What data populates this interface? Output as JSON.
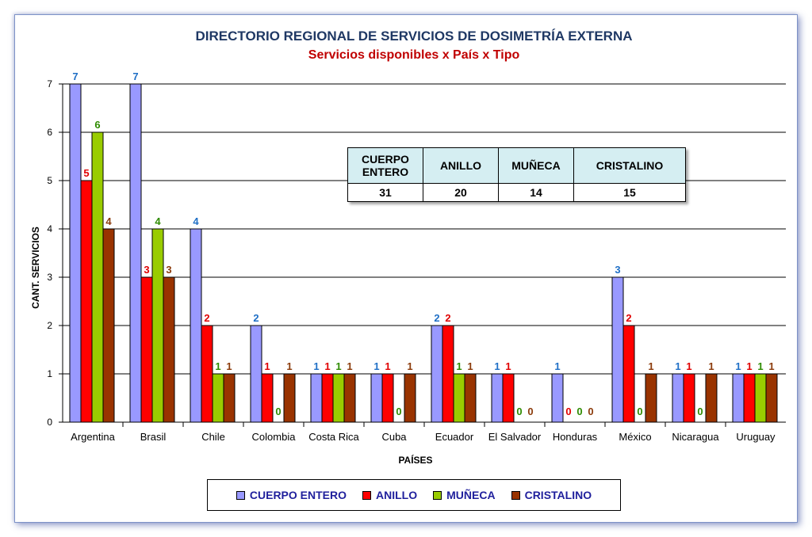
{
  "colors": {
    "cuerpo": "#9999ff",
    "anillo": "#ff0000",
    "muneca": "#99cc00",
    "cristalino": "#993300",
    "label_cuerpo": "#1f6fc6",
    "label_anillo": "#e00000",
    "label_muneca": "#2e8b00",
    "label_cristalino": "#8b3a0a",
    "title": "#1f3864",
    "subtitle": "#c00000"
  },
  "totals": {
    "headers": [
      "CUERPO ENTERO",
      "ANILLO",
      "MUÑECA",
      "CRISTALINO"
    ],
    "values": [
      "31",
      "20",
      "14",
      "15"
    ]
  },
  "chart_data": {
    "type": "bar",
    "title": "DIRECTORIO REGIONAL DE SERVICIOS DE DOSIMETRÍA EXTERNA",
    "subtitle": "Servicios disponibles x País x Tipo",
    "xlabel": "PAÍSES",
    "ylabel": "CANT. SERVICIOS",
    "ylim": [
      0,
      7
    ],
    "yticks": [
      "0",
      "1",
      "2",
      "3",
      "4",
      "5",
      "6",
      "7"
    ],
    "grid": true,
    "legend_position": "bottom",
    "categories": [
      "Argentina",
      "Brasil",
      "Chile",
      "Colombia",
      "Costa Rica",
      "Cuba",
      "Ecuador",
      "El Salvador",
      "Honduras",
      "México",
      "Nicaragua",
      "Uruguay"
    ],
    "series": [
      {
        "name": "CUERPO ENTERO",
        "values": [
          7,
          7,
          4,
          2,
          1,
          1,
          2,
          1,
          1,
          3,
          1,
          1
        ]
      },
      {
        "name": "ANILLO",
        "values": [
          5,
          3,
          2,
          1,
          1,
          1,
          2,
          1,
          0,
          2,
          1,
          1
        ]
      },
      {
        "name": "MUÑECA",
        "values": [
          6,
          4,
          1,
          0,
          1,
          0,
          1,
          0,
          0,
          0,
          0,
          1
        ]
      },
      {
        "name": "CRISTALINO",
        "values": [
          4,
          3,
          1,
          1,
          1,
          1,
          1,
          0,
          0,
          1,
          1,
          1
        ]
      }
    ]
  }
}
